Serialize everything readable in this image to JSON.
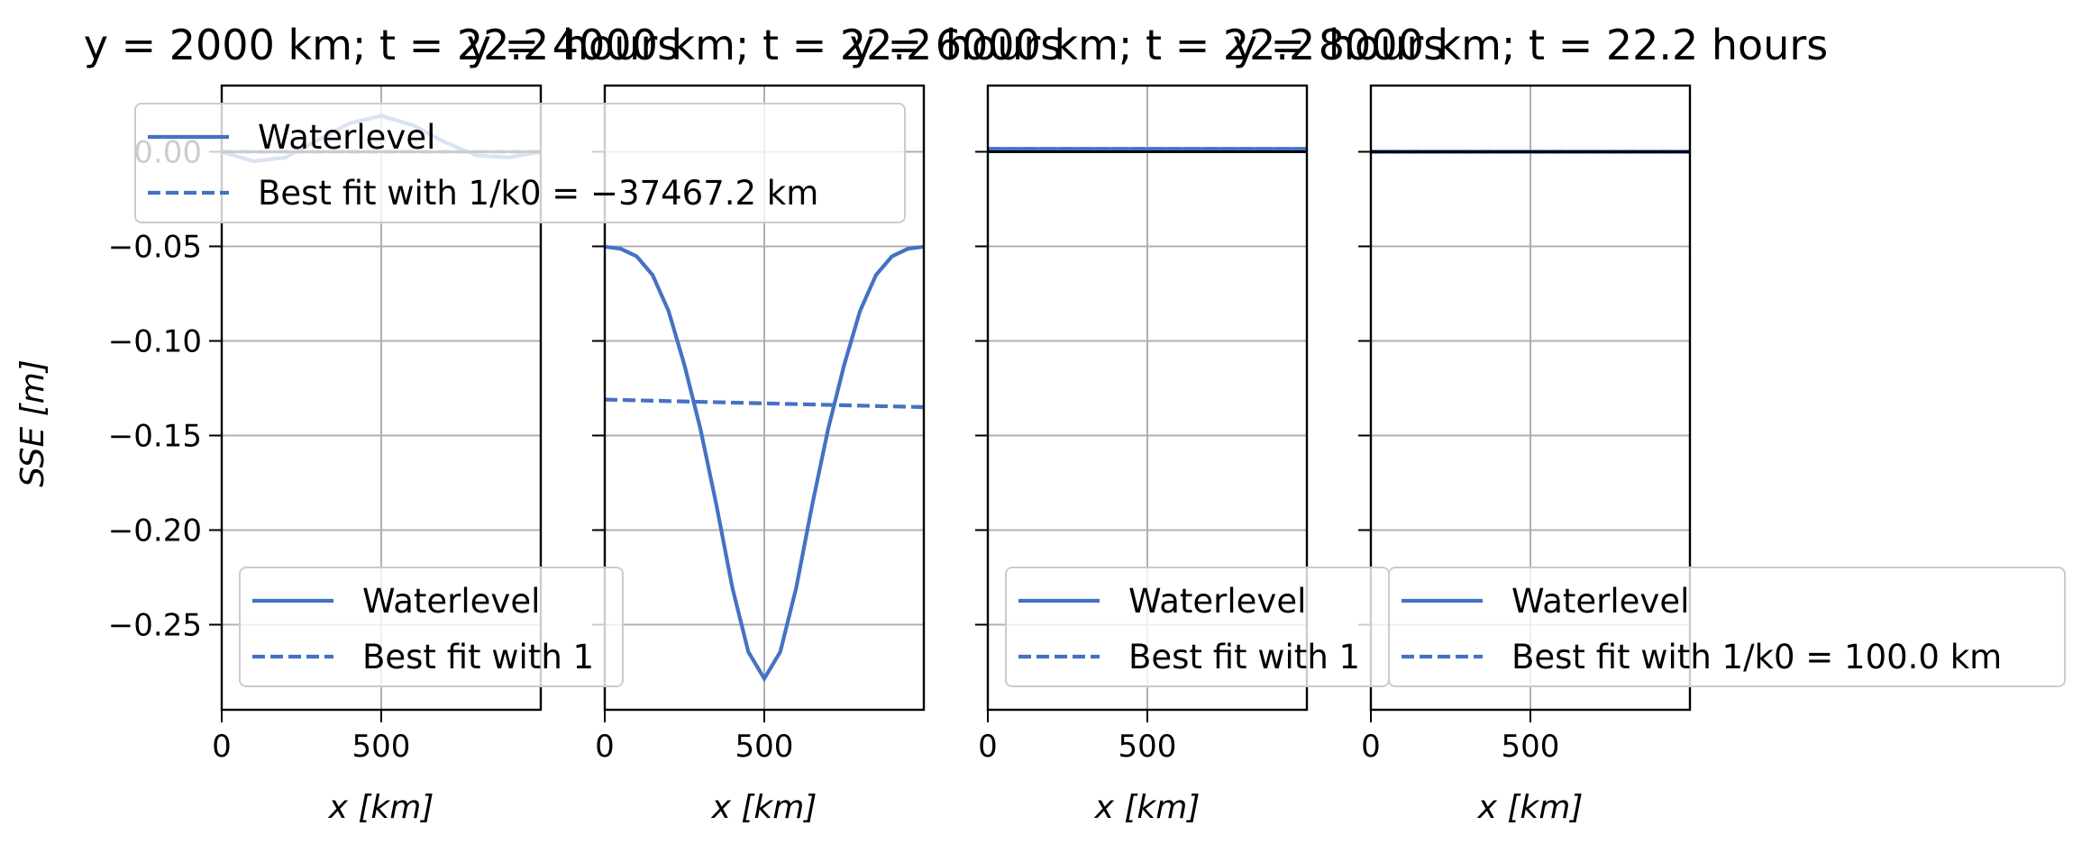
{
  "colors": {
    "series": "#4472c4",
    "zero_line": "#000000",
    "grid": "#b0b0b0",
    "frame": "#000000"
  },
  "shared": {
    "ylabel": "SSE [m]",
    "xlabel": "x [km]",
    "ylim": [
      -0.295,
      0.035
    ],
    "xlim": [
      0,
      1000
    ],
    "y_ticks": [
      0.0,
      -0.05,
      -0.1,
      -0.15,
      -0.2,
      -0.25
    ],
    "y_tick_labels": [
      "0.00",
      "−0.05",
      "−0.10",
      "−0.15",
      "−0.20",
      "−0.25"
    ],
    "x_ticks": [
      0,
      500
    ],
    "x_tick_labels": [
      "0",
      "500"
    ],
    "grid": true,
    "legend_waterlevel": "Waterlevel"
  },
  "chart_data": [
    {
      "type": "line",
      "title": "y = 2000 km; t = 22.2 hours",
      "legends": [
        {
          "placement": "upper-left",
          "fit_label": "Best fit with 1/k0 = −37467.2 km"
        },
        {
          "placement": "lower-left",
          "fit_label": "Best fit with 1"
        }
      ],
      "series": [
        {
          "name": "Waterlevel",
          "style": "solid",
          "x": [
            0,
            100,
            200,
            300,
            400,
            500,
            600,
            700,
            800,
            900,
            1000
          ],
          "y": [
            0.0,
            -0.005,
            -0.003,
            0.006,
            0.015,
            0.019,
            0.014,
            0.005,
            -0.002,
            -0.003,
            0.0
          ]
        },
        {
          "name": "Best fit",
          "style": "dashed",
          "x": [
            0,
            1000
          ],
          "y": [
            0.0,
            0.0
          ]
        }
      ],
      "zero_line": true
    },
    {
      "type": "line",
      "title": "y = 4000 km; t = 22.2 hours",
      "legends": [],
      "series": [
        {
          "name": "Waterlevel",
          "style": "solid",
          "x": [
            0,
            50,
            100,
            150,
            200,
            250,
            300,
            350,
            400,
            450,
            500,
            550,
            600,
            650,
            700,
            750,
            800,
            850,
            900,
            950,
            1000
          ],
          "y": [
            -0.0502,
            -0.0513,
            -0.0553,
            -0.0652,
            -0.0842,
            -0.1129,
            -0.1466,
            -0.1868,
            -0.2305,
            -0.2644,
            -0.2785,
            -0.2644,
            -0.2305,
            -0.1868,
            -0.1466,
            -0.1129,
            -0.0842,
            -0.0652,
            -0.0553,
            -0.0513,
            -0.0502
          ]
        },
        {
          "name": "Best fit",
          "style": "dashed",
          "x": [
            0,
            1000
          ],
          "y": [
            -0.131,
            -0.135
          ]
        }
      ],
      "zero_line": false
    },
    {
      "type": "line",
      "title": "y = 6000 km; t = 22.2 hours",
      "legends": [
        {
          "placement": "lower-left",
          "fit_label": "Best fit with 1"
        }
      ],
      "series": [
        {
          "name": "Waterlevel",
          "style": "solid",
          "x": [
            0,
            1000
          ],
          "y": [
            0.0015,
            0.0015
          ]
        },
        {
          "name": "Best fit",
          "style": "dashed",
          "x": [
            0,
            1000
          ],
          "y": [
            0.0015,
            0.0015
          ]
        }
      ],
      "zero_line": true
    },
    {
      "type": "line",
      "title": "y = 8000 km; t = 22.2 hours",
      "legends": [
        {
          "placement": "lower-left",
          "fit_label": "Best fit with 1/k0 = 100.0 km"
        }
      ],
      "series": [
        {
          "name": "Waterlevel",
          "style": "solid",
          "x": [
            0,
            1000
          ],
          "y": [
            0.0,
            0.0
          ]
        },
        {
          "name": "Best fit",
          "style": "dashed",
          "x": [
            0,
            1000
          ],
          "y": [
            0.0,
            0.0
          ]
        }
      ],
      "zero_line": true
    }
  ]
}
